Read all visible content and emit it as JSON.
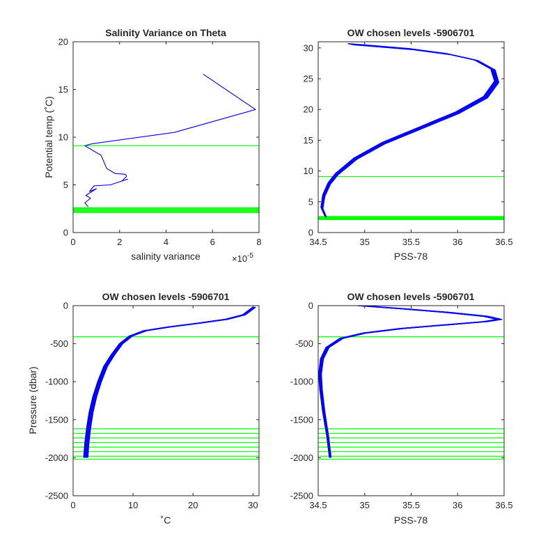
{
  "colors": {
    "profile": "#0000ff",
    "levels": "#00ff00",
    "axes": "#262626",
    "background": "#ffffff"
  },
  "chart_data": [
    {
      "id": "tl",
      "type": "line",
      "title": "Salinity Variance on Theta",
      "xlabel": "salinity variance",
      "ylabel": "Potential temp (˚C)",
      "x_exponent_label": "×10",
      "x_exponent": "-5",
      "xlim": [
        0,
        8
      ],
      "ylim": [
        0,
        20
      ],
      "xticks": [
        0,
        2,
        4,
        6,
        8
      ],
      "yticks": [
        0,
        5,
        10,
        15,
        20
      ],
      "xtick_labels": [
        "0",
        "2",
        "4",
        "6",
        "8"
      ],
      "ytick_labels": [
        "0",
        "5",
        "10",
        "15",
        "20"
      ],
      "series": [
        {
          "x": [
            5.6,
            7.85,
            4.35,
            0.8,
            0.5,
            1.2,
            1.45,
            1.8,
            2.25,
            2.3,
            2.1,
            2.35,
            1.6,
            0.9,
            0.7,
            1.0,
            0.55,
            0.75,
            0.5,
            0.65
          ],
          "y": [
            16.6,
            12.9,
            10.5,
            9.3,
            9.1,
            8.1,
            6.7,
            6.2,
            6.1,
            5.9,
            5.4,
            5.6,
            5.0,
            4.9,
            4.3,
            4.6,
            3.9,
            3.6,
            3.1,
            2.7
          ]
        }
      ],
      "hlines": [
        9.1,
        2.1,
        2.2,
        2.3,
        2.4,
        2.5,
        2.6
      ]
    },
    {
      "id": "tr",
      "type": "line",
      "title": "OW chosen levels -5906701",
      "xlabel": "PSS-78",
      "ylabel": "",
      "xlim": [
        34.5,
        36.5
      ],
      "ylim": [
        0,
        31
      ],
      "xticks": [
        34.5,
        35,
        35.5,
        36,
        36.5
      ],
      "yticks": [
        0,
        5,
        10,
        15,
        20,
        25,
        30
      ],
      "xtick_labels": [
        "34.5",
        "35",
        "35.5",
        "36",
        "36.5"
      ],
      "ytick_labels": [
        "0",
        "5",
        "10",
        "15",
        "20",
        "25",
        "30"
      ],
      "series": [
        {
          "x": [
            34.58,
            34.54,
            34.56,
            34.62,
            34.7,
            34.9,
            35.2,
            35.6,
            36.0,
            36.3,
            36.42,
            36.38,
            36.2,
            35.9,
            35.5,
            35.1,
            34.85
          ],
          "y": [
            2.6,
            4.0,
            6.0,
            8.0,
            9.5,
            12.0,
            14.5,
            17.0,
            19.5,
            22.0,
            24.5,
            26.5,
            28.0,
            29.0,
            29.8,
            30.3,
            30.6
          ]
        }
      ],
      "hlines": [
        9.1,
        2.1,
        2.2,
        2.3,
        2.4,
        2.5,
        2.6
      ]
    },
    {
      "id": "bl",
      "type": "line",
      "title": "OW chosen levels -5906701",
      "xlabel": "˚C",
      "ylabel": "Pressure (dbar)",
      "xlim": [
        0,
        31
      ],
      "ylim": [
        -2500,
        0
      ],
      "xticks": [
        0,
        10,
        20,
        30
      ],
      "yticks": [
        -2500,
        -2000,
        -1500,
        -1000,
        -500,
        0
      ],
      "xtick_labels": [
        "0",
        "10",
        "20",
        "30"
      ],
      "ytick_labels": [
        "-2500",
        "-2000",
        "-1500",
        "-1000",
        "-500",
        "0"
      ],
      "series": [
        {
          "x": [
            2.1,
            2.3,
            2.6,
            3.0,
            3.6,
            4.4,
            5.4,
            6.6,
            8.0,
            9.6,
            12.0,
            16.0,
            21.0,
            25.5,
            28.5,
            30.2
          ],
          "y": [
            -2000,
            -1800,
            -1600,
            -1400,
            -1200,
            -1000,
            -800,
            -650,
            -500,
            -400,
            -330,
            -280,
            -230,
            -180,
            -120,
            -20
          ]
        }
      ],
      "hlines": [
        -410,
        -1620,
        -1680,
        -1740,
        -1800,
        -1860,
        -1920,
        -1980,
        -2020
      ]
    },
    {
      "id": "br",
      "type": "line",
      "title": "OW chosen levels -5906701",
      "xlabel": "PSS-78",
      "ylabel": "",
      "xlim": [
        34.5,
        36.5
      ],
      "ylim": [
        -2500,
        0
      ],
      "xticks": [
        34.5,
        35,
        35.5,
        36,
        36.5
      ],
      "yticks": [
        -2500,
        -2000,
        -1500,
        -1000,
        -500,
        0
      ],
      "xtick_labels": [
        "34.5",
        "35",
        "35.5",
        "36",
        "36.5"
      ],
      "ytick_labels": [
        "-2500",
        "-2000",
        "-1500",
        "-1000",
        "-500",
        "0"
      ],
      "series": [
        {
          "x": [
            34.63,
            34.6,
            34.56,
            34.53,
            34.52,
            34.54,
            34.6,
            34.75,
            35.0,
            35.4,
            35.9,
            36.3,
            36.45,
            36.3,
            35.9,
            35.4,
            34.95
          ],
          "y": [
            -2000,
            -1700,
            -1400,
            -1100,
            -900,
            -700,
            -550,
            -430,
            -360,
            -300,
            -250,
            -210,
            -180,
            -140,
            -90,
            -40,
            0
          ]
        }
      ],
      "hlines": [
        -410,
        -1620,
        -1680,
        -1740,
        -1800,
        -1860,
        -1920,
        -1980,
        -2020
      ]
    }
  ]
}
